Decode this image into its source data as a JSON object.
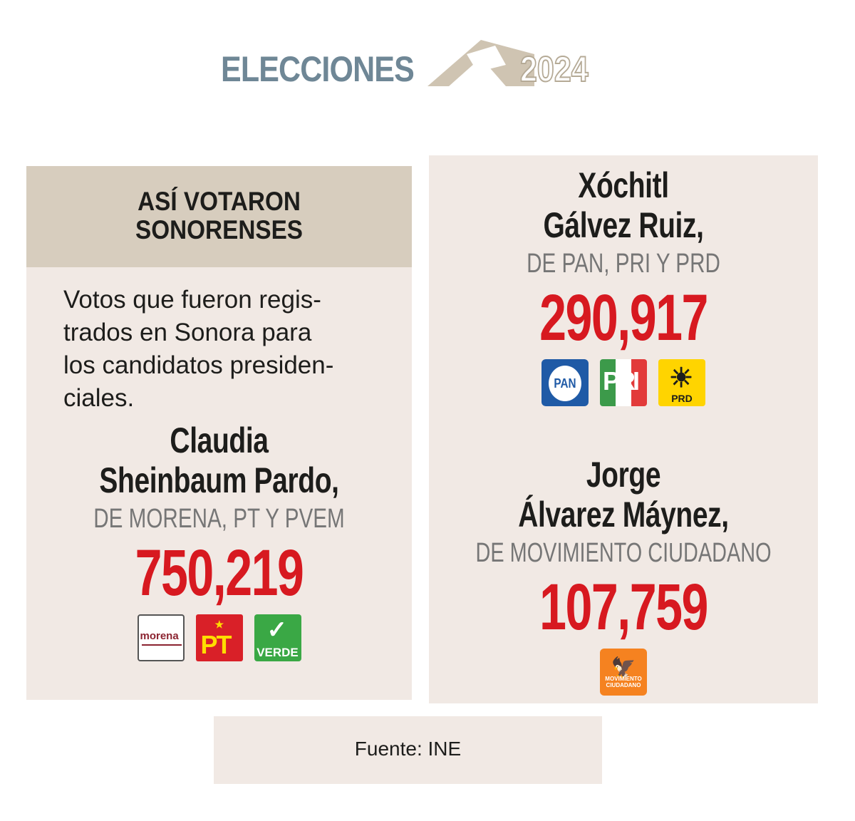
{
  "header": {
    "title": "ELECCIONES",
    "year": "2024"
  },
  "intro": {
    "title": "ASÍ VOTARON\nSONORENSES",
    "text": "Votos que fueron regis-\ntrados en Sonora para\nlos candidatos presiden-\nciales."
  },
  "candidates": [
    {
      "name": "Claudia\nSheinbaum Pardo,",
      "parties": "DE MORENA, PT Y PVEM",
      "votes": "750,219",
      "logos": [
        {
          "icon": "morena-logo",
          "text": "morena"
        },
        {
          "icon": "pt-logo",
          "text": "PT"
        },
        {
          "icon": "verde-logo",
          "text": "VERDE"
        }
      ]
    },
    {
      "name": "Xóchitl\nGálvez Ruiz,",
      "parties": "DE PAN, PRI Y PRD",
      "votes": "290,917",
      "logos": [
        {
          "icon": "pan-logo",
          "text": "PAN"
        },
        {
          "icon": "pri-logo",
          "text": "PRI"
        },
        {
          "icon": "prd-logo",
          "text": "PRD"
        }
      ]
    },
    {
      "name": "Jorge\nÁlvarez Máynez,",
      "parties": "DE MOVIMIENTO CIUDADANO",
      "votes": "107,759",
      "logos": [
        {
          "icon": "movimiento-ciudadano-logo",
          "text": "MOVIMIENTO CIUDADANO"
        }
      ]
    }
  ],
  "source": "Fuente: INE",
  "colors": {
    "panel": "#f1e9e4",
    "title_box": "#d7cdbe",
    "votes": "#d71920",
    "header_title": "#6f8796"
  }
}
